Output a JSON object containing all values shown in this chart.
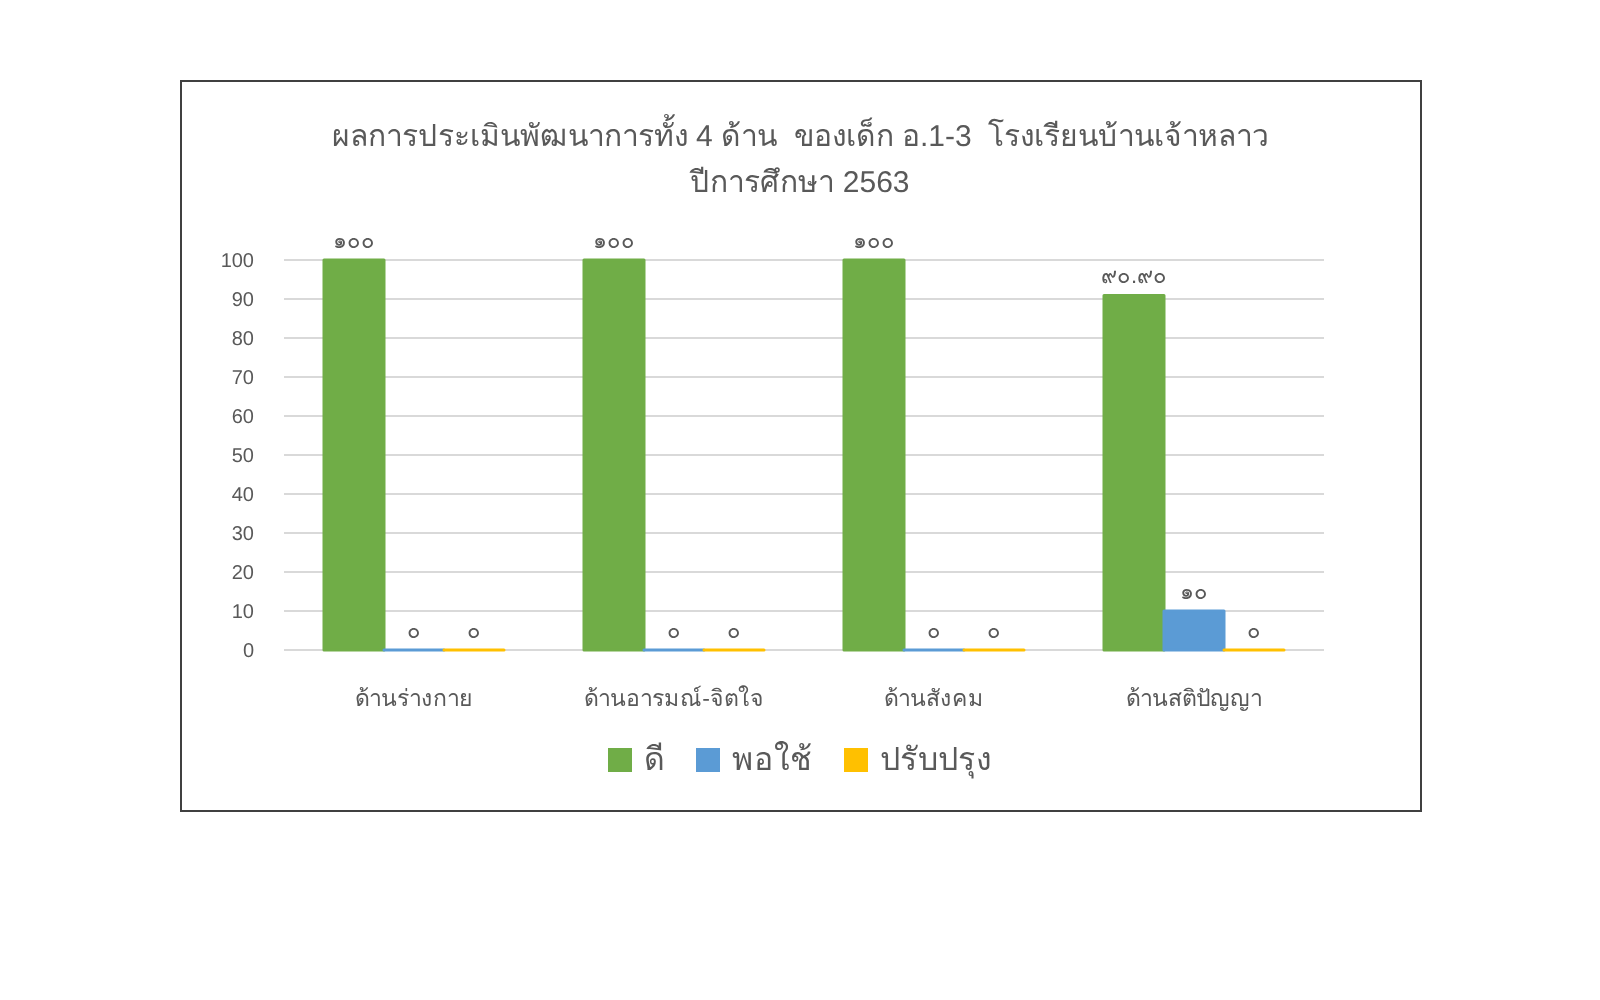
{
  "chart_data": {
    "type": "bar",
    "title": "ผลการประเมินพัฒนาการทั้ง 4 ด้าน  ของเด็ก อ.1-3  โรงเรียนบ้านเจ้าหลาว",
    "subtitle": "ปีการศึกษา 2563",
    "categories": [
      "ด้านร่างกาย",
      "ด้านอารมณ์-จิตใจ",
      "ด้านสังคม",
      "ด้านสติปัญญา"
    ],
    "series": [
      {
        "name": "ดี",
        "color": "#70ad47",
        "values": [
          100,
          100,
          100,
          90.9
        ],
        "value_labels": [
          "๑๐๐",
          "๑๐๐",
          "๑๐๐",
          "๙๐.๙๐"
        ]
      },
      {
        "name": "พอใช้",
        "color": "#5b9bd5",
        "values": [
          0,
          0,
          0,
          10
        ],
        "value_labels": [
          "๐",
          "๐",
          "๐",
          "๑๐"
        ]
      },
      {
        "name": "ปรับปรุง",
        "color": "#ffc000",
        "values": [
          0,
          0,
          0,
          0
        ],
        "value_labels": [
          "๐",
          "๐",
          "๐",
          "๐"
        ]
      }
    ],
    "ylim": [
      0,
      100
    ],
    "yticks": [
      0,
      10,
      20,
      30,
      40,
      50,
      60,
      70,
      80,
      90,
      100
    ],
    "grid": "y",
    "legend": "bottom"
  }
}
